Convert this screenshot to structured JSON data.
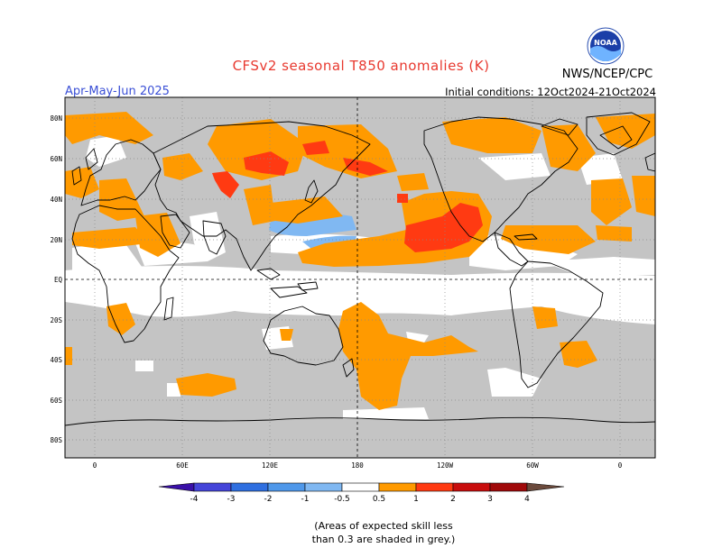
{
  "header": {
    "title": "CFSv2 seasonal T850 anomalies (K)",
    "period": "Apr-May-Jun 2025",
    "initial_conditions": "Initial conditions: 12Oct2024-21Oct2024",
    "agency": "NWS/NCEP/CPC",
    "logo_text": "NOAA"
  },
  "map": {
    "lat_labels": [
      "80N",
      "60N",
      "40N",
      "20N",
      "EQ",
      "20S",
      "40S",
      "60S",
      "80S"
    ],
    "lon_labels": [
      "0",
      "60E",
      "120E",
      "180",
      "120W",
      "60W",
      "0"
    ]
  },
  "legend": {
    "tick_labels": [
      "-4",
      "-3",
      "-2",
      "-1",
      "-0.5",
      "0.5",
      "1",
      "2",
      "3",
      "4"
    ],
    "colors": {
      "lt_minus4": "#3a10a8",
      "m4_m3": "#4545d9",
      "m3_m2": "#2f6fe0",
      "m2_m1": "#4f98ea",
      "m1_m05": "#80b8f2",
      "neutral": "#ffffff",
      "p05_p1": "#ff9a00",
      "p1_p2": "#ff3a12",
      "p2_p3": "#c80d0d",
      "p3_p4": "#a0090a",
      "p4_p5": "#c9a294",
      "gt_p5": "#6b4a3c",
      "low_skill": "#c4c4c4"
    }
  },
  "footnote": {
    "line1": "(Areas of expected skill less",
    "line2": "than 0.3 are shaded in grey.)"
  }
}
